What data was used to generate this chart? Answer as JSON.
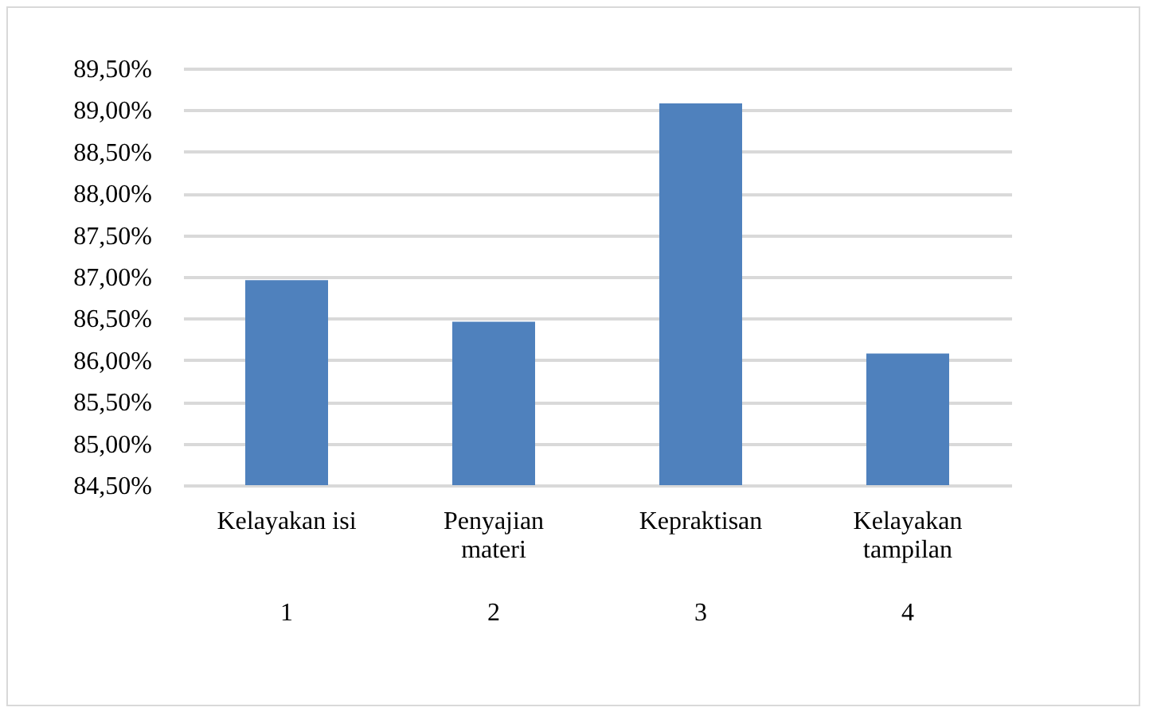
{
  "chart_data": {
    "type": "bar",
    "categories": [
      "Kelayakan isi",
      "Penyajian materi",
      "Kepraktisan",
      "Kelayakan tampilan"
    ],
    "values": [
      86.96,
      86.46,
      89.08,
      86.08
    ],
    "color": "#4f81bd",
    "ylim": [
      84.5,
      89.5
    ],
    "yticks": [
      {
        "value": 84.5,
        "label": "84,50%"
      },
      {
        "value": 85,
        "label": "85,00%"
      },
      {
        "value": 85.5,
        "label": "85,50%"
      },
      {
        "value": 86,
        "label": "86,00%"
      },
      {
        "value": 86.5,
        "label": "86,50%"
      },
      {
        "value": 87,
        "label": "87,00%"
      },
      {
        "value": 87.5,
        "label": "87,50%"
      },
      {
        "value": 88,
        "label": "88,00%"
      },
      {
        "value": 88.5,
        "label": "88,50%"
      },
      {
        "value": 89,
        "label": "89,00%"
      },
      {
        "value": 89.5,
        "label": "89,50%"
      }
    ],
    "grid": "y",
    "annotations": [
      "1",
      "2",
      "3",
      "4"
    ]
  }
}
